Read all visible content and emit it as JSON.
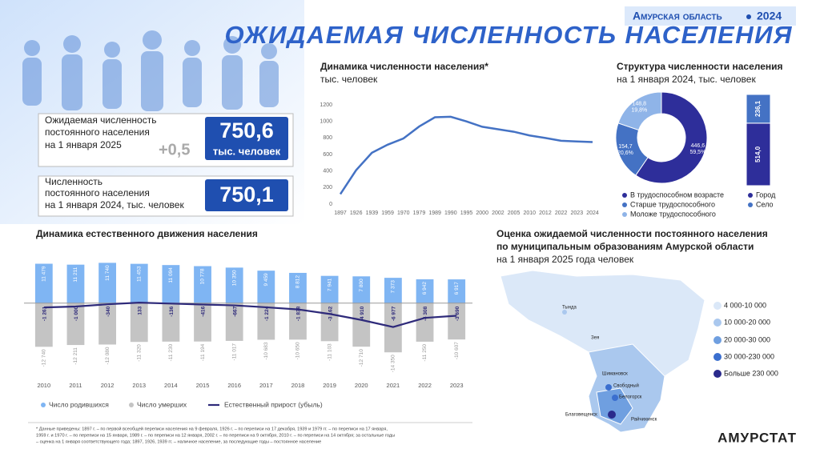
{
  "header": {
    "region": "Амурская область",
    "year": "2024",
    "title": "ОЖИДАЕМАЯ ЧИСЛЕННОСТЬ НАСЕЛЕНИЯ"
  },
  "summary": [
    {
      "label": [
        "Ожидаемая численность",
        "постоянного населения",
        "на 1 января 2025"
      ],
      "value": "750,6",
      "unit": "тыс. человек",
      "change": "+0,5"
    },
    {
      "label": [
        "Численность",
        "постоянного населения",
        "на 1 января 2024, тыс. человек"
      ],
      "value": "750,1"
    }
  ],
  "chart_data": [
    {
      "type": "line",
      "title": "Динамика численности населения*",
      "subtitle": "тыс. человек",
      "categories": [
        "1897",
        "1926",
        "1939",
        "1959",
        "1970",
        "1979",
        "1989",
        "1990",
        "1995",
        "2000",
        "2002",
        "2005",
        "2010",
        "2012",
        "2022",
        "2023",
        "2024"
      ],
      "series": [
        {
          "name": "Численность населения",
          "color": "#4472c4",
          "values": [
            120,
            410,
            620,
            718,
            793,
            938,
            1050,
            1056,
            1000,
            935,
            905,
            875,
            830,
            800,
            766,
            757,
            750
          ]
        }
      ],
      "ylim": [
        0,
        1200
      ],
      "yticks": [
        0,
        200,
        400,
        600,
        800,
        1000,
        1200
      ],
      "grid": false
    },
    {
      "type": "pie",
      "title": "Структура численности населения",
      "subtitle": "на 1 января 2024, тыс. человек",
      "donut": true,
      "categories": [
        "В трудоспособном возрасте",
        "Старше трудоспособного",
        "Моложе трудоспособного"
      ],
      "values": [
        446.6,
        154.7,
        148.8
      ],
      "value_labels": [
        "446,6",
        "154,7",
        "148,8"
      ],
      "shares": [
        59.5,
        20.6,
        19.8
      ],
      "share_labels": [
        "59,5%",
        "20,6%",
        "19,8%"
      ],
      "colors": [
        "#2e2e9a",
        "#4472c4",
        "#8fb4e8"
      ]
    },
    {
      "type": "bar",
      "stacked": true,
      "series": [
        {
          "name": "Город",
          "color": "#2e2e9a",
          "values": [
            514.0
          ],
          "value_labels": [
            "514,0"
          ]
        },
        {
          "name": "Село",
          "color": "#4472c4",
          "values": [
            236.1
          ],
          "value_labels": [
            "236,1"
          ]
        }
      ]
    },
    {
      "type": "combo",
      "title": "Динамика естественного движения населения",
      "categories": [
        "2010",
        "2011",
        "2012",
        "2013",
        "2014",
        "2015",
        "2016",
        "2017",
        "2018",
        "2019",
        "2020",
        "2021",
        "2022",
        "2023"
      ],
      "series": [
        {
          "name": "Число родившихся",
          "kind": "bar",
          "color": "#7fb5f3",
          "values": [
            11479,
            11211,
            11740,
            11453,
            11094,
            10778,
            10350,
            9459,
            8812,
            7941,
            7800,
            7373,
            6942,
            6917
          ],
          "value_labels": [
            "11 479",
            "11 211",
            "11 740",
            "11 453",
            "11 094",
            "10 778",
            "10 350",
            "9 459",
            "8 812",
            "7 941",
            "7 800",
            "7 373",
            "6 942",
            "6 917"
          ]
        },
        {
          "name": "Число умерших",
          "kind": "bar",
          "color": "#c4c4c4",
          "values": [
            -12740,
            -12211,
            -12080,
            -11320,
            -11230,
            -11194,
            -11017,
            -10683,
            -10650,
            -11103,
            -12710,
            -14350,
            -11250,
            -10607
          ],
          "value_labels": [
            "-12 740",
            "-12 211",
            "-12 080",
            "-11 320",
            "-11 230",
            "-11 194",
            "-11 017",
            "-10 683",
            "-10 650",
            "-11 103",
            "-12 710",
            "-14 350",
            "-11 250",
            "-10 607"
          ]
        },
        {
          "name": "Естественный прирост (убыль)",
          "kind": "line",
          "color": "#2e2a7a",
          "values": [
            -1261,
            -1000,
            -340,
            133,
            -136,
            -416,
            -667,
            -1224,
            -1838,
            -3162,
            -4910,
            -6977,
            -4308,
            -3690
          ],
          "value_labels": [
            "-1 261",
            "-1 000",
            "-340",
            "133",
            "-136",
            "-416",
            "-667",
            "-1 224",
            "-1 838",
            "-3 162",
            "-4 910",
            "-6 977",
            "-4 308",
            "-3 690"
          ]
        }
      ],
      "ylim": [
        -15000,
        13000
      ]
    }
  ],
  "map": {
    "title": [
      "Оценка ожидаемой численности постоянного населения",
      "по муниципальным образованиям Амурской области"
    ],
    "subtitle": "на 1 января 2025 года человек",
    "legend": [
      "4 000-10 000",
      "10 000-20 000",
      "20 000-30 000",
      "30 000-230 000",
      "Больше 230 000"
    ],
    "cities": [
      "Тында",
      "Зея",
      "Шимановск",
      "Свободный",
      "Белогорск",
      "Благовещенск",
      "Райчихинск"
    ]
  },
  "footnote": [
    "* Данные приведены: 1897 г. – по первой всеобщей переписи населения на 9 февраля, 1926 г. – по переписи на 17 декабря, 1939 и 1979 гг. – по переписи на 17 января,",
    "1959 г. и 1970 г. – по переписи на 15 января, 1989 г. – по переписи на 12 января, 2002 г. – по переписи на 9 октября, 2010 г. – по переписи на 14 октября; за остальные годы",
    "– оценка на 1 января соответствующего года; 1897, 1926, 1939 гг. – наличное население, за последующие годы – постоянное население"
  ],
  "logo": "АМУРСТАТ"
}
